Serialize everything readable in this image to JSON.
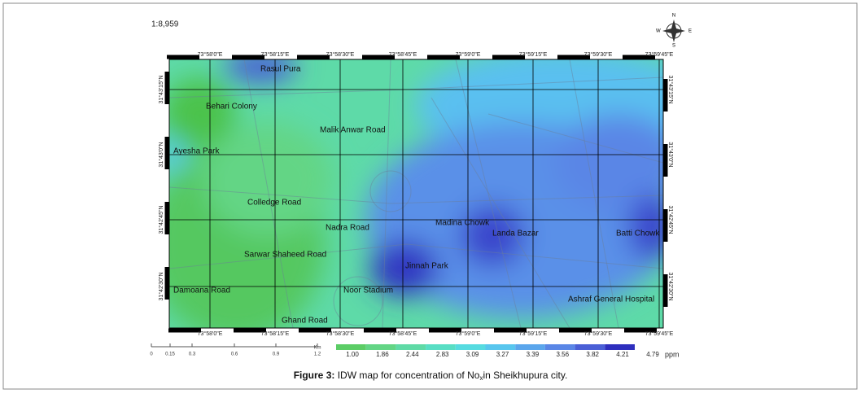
{
  "header": {
    "scale": "1:8,959",
    "compass": {
      "n": "N",
      "e": "E",
      "s": "S",
      "w": "W"
    }
  },
  "map": {
    "longitudes": [
      "73°58'0\"E",
      "73°58'15\"E",
      "73°58'30\"E",
      "73°58'45\"E",
      "73°59'0\"E",
      "73°59'15\"E",
      "73°59'30\"E",
      "73°59'45\"E"
    ],
    "latitudes": [
      "31°43'15\"N",
      "31°43'0\"N",
      "31°42'45\"N",
      "31°42'30\"N"
    ],
    "places": [
      "Rasul Pura",
      "Behari Colony",
      "Malik Anwar Road",
      "Ayesha Park",
      "Colledge Road",
      "Nadra Road",
      "Madina Chowk",
      "Landa Bazar",
      "Batti Chowk",
      "Sarwar Shaheed Road",
      "Jinnah Park",
      "Damoana Road",
      "Noor Stadium",
      "Ashraf General Hospital",
      "Ghand Road"
    ]
  },
  "scale_bar": {
    "ticks": [
      "0",
      "0.15",
      "0.3",
      "0.6",
      "0.9",
      "1.2"
    ],
    "unit": "Km"
  },
  "legend": {
    "unit": "ppm",
    "classes": [
      {
        "label": "1.00",
        "color": "#4cc24c"
      },
      {
        "label": "1.86",
        "color": "#5ccd66"
      },
      {
        "label": "2.44",
        "color": "#63d585"
      },
      {
        "label": "2.83",
        "color": "#5fdaa6"
      },
      {
        "label": "3.09",
        "color": "#58dec4"
      },
      {
        "label": "3.27",
        "color": "#56dbe0"
      },
      {
        "label": "3.39",
        "color": "#58c6ee"
      },
      {
        "label": "3.56",
        "color": "#5ba6ec"
      },
      {
        "label": "3.82",
        "color": "#5a86e6"
      },
      {
        "label": "4.21",
        "color": "#4a5fd6"
      },
      {
        "label": "4.79",
        "color": "#2e2fbe"
      }
    ]
  },
  "caption": {
    "label": "Figure 3:",
    "text": "IDW map for concentration of No",
    "subscript": "x",
    "rest": "in Sheikhupura city."
  }
}
